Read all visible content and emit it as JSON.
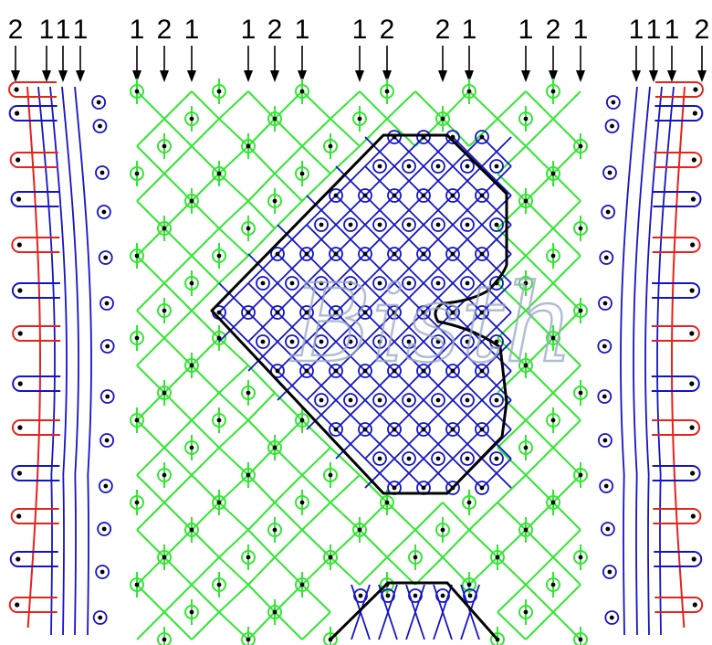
{
  "pin_labels": [
    {
      "text": "2"
    },
    {
      "text": "1"
    },
    {
      "text": "1"
    },
    {
      "text": "1"
    },
    {
      "text": "1"
    },
    {
      "text": "2"
    },
    {
      "text": "1"
    },
    {
      "text": "1"
    },
    {
      "text": "2"
    },
    {
      "text": "1"
    },
    {
      "text": "1"
    },
    {
      "text": "2"
    },
    {
      "text": "2"
    },
    {
      "text": "1"
    },
    {
      "text": "1"
    },
    {
      "text": "2"
    },
    {
      "text": "1"
    },
    {
      "text": "1"
    },
    {
      "text": "1"
    },
    {
      "text": "1"
    },
    {
      "text": "2"
    }
  ],
  "watermark_text": "Bisth",
  "colors": {
    "edge_thread": "#e8221a",
    "passive_thread": "#1414c8",
    "ground_thread": "#33e633",
    "outline": "#000000",
    "pin": "#000000",
    "watermark": "#9aa8c4"
  },
  "icons": [
    "down-arrow-icon",
    "pin-dot-icon"
  ]
}
